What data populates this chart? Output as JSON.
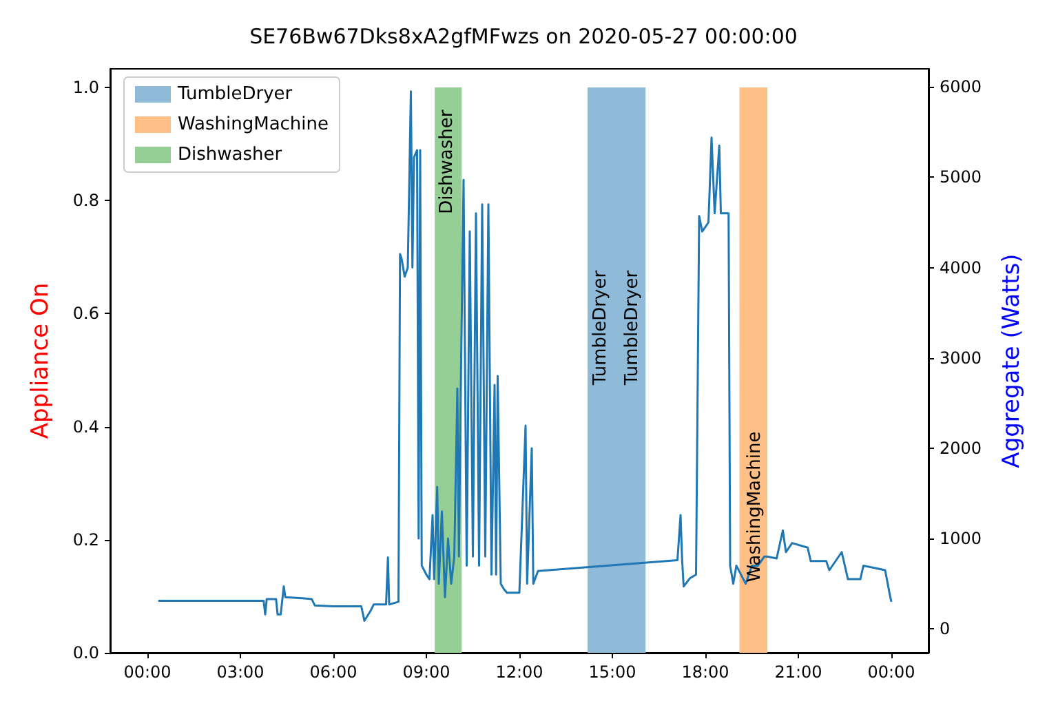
{
  "chart_data": {
    "type": "line",
    "title": "SE76Bw67Dks8xA2gfMFwzs on 2020-05-27 00:00:00",
    "ylabel": "Appliance On",
    "y2label": "Aggregate (Watts)",
    "xlim": [
      -1.2,
      25.2
    ],
    "xticks": [
      {
        "value": 0,
        "label": "00:00"
      },
      {
        "value": 3,
        "label": "03:00"
      },
      {
        "value": 6,
        "label": "06:00"
      },
      {
        "value": 9,
        "label": "09:00"
      },
      {
        "value": 12,
        "label": "12:00"
      },
      {
        "value": 15,
        "label": "15:00"
      },
      {
        "value": 18,
        "label": "18:00"
      },
      {
        "value": 21,
        "label": "21:00"
      },
      {
        "value": 24,
        "label": "00:00"
      }
    ],
    "ylim": [
      0,
      1.033
    ],
    "yticks": [
      {
        "value": 0,
        "label": "0.0"
      },
      0.2,
      0.4,
      0.6,
      0.8,
      {
        "value": 1,
        "label": "1.0"
      }
    ],
    "y2lim": [
      -265,
      6200
    ],
    "y2ticks": [
      0,
      1000,
      2000,
      3000,
      4000,
      5000,
      6000
    ],
    "legend": "top left",
    "grid": false,
    "marker": "none",
    "series": [
      {
        "name": "TumbleDryer",
        "type": "area",
        "color": "#8fbbd9",
        "x": [
          14.2,
          16.07
        ],
        "values": [
          1,
          1
        ]
      },
      {
        "name": "WashingMachine",
        "type": "area",
        "color": "#ffbf86",
        "x": [
          19.1,
          20.0
        ],
        "values": [
          1,
          1
        ]
      },
      {
        "name": "Dishwasher",
        "type": "area",
        "color": "#95cf95",
        "x": [
          9.27,
          10.14
        ],
        "values": [
          1,
          1
        ]
      },
      {
        "axis": "y2",
        "color": "#1f77b4",
        "x": [
          0.35,
          3.75,
          3.8,
          3.85,
          4.15,
          4.2,
          4.3,
          4.4,
          4.45,
          5.0,
          5.3,
          5.4,
          6.0,
          6.9,
          7.0,
          7.2,
          7.3,
          7.7,
          7.76,
          7.8,
          8.1,
          8.15,
          8.2,
          8.3,
          8.4,
          8.5,
          8.55,
          8.6,
          8.7,
          8.75,
          8.8,
          8.85,
          9.0,
          9.1,
          9.2,
          9.25,
          9.35,
          9.4,
          9.5,
          9.6,
          9.7,
          9.8,
          9.9,
          10.0,
          10.05,
          10.1,
          10.2,
          10.3,
          10.4,
          10.5,
          10.6,
          10.7,
          10.8,
          10.9,
          11.0,
          11.1,
          11.2,
          11.25,
          11.3,
          11.4,
          11.5,
          11.6,
          12.0,
          12.2,
          12.25,
          12.4,
          12.45,
          12.6,
          17.1,
          17.2,
          17.25,
          17.3,
          17.5,
          17.7,
          17.8,
          17.9,
          18.1,
          18.2,
          18.3,
          18.45,
          18.5,
          18.75,
          18.8,
          18.9,
          19.0,
          19.3,
          19.5,
          19.7,
          19.9,
          20.0,
          20.3,
          20.5,
          20.6,
          20.8,
          21.3,
          21.4,
          21.9,
          22.0,
          22.4,
          22.6,
          23.0,
          23.1,
          23.8,
          23.95,
          24.0
        ],
        "values": [
          310,
          310,
          160,
          330,
          330,
          160,
          160,
          470,
          350,
          340,
          330,
          260,
          250,
          250,
          90,
          200,
          270,
          270,
          790,
          270,
          300,
          4150,
          4100,
          3900,
          4000,
          5950,
          4000,
          5220,
          5300,
          1000,
          5300,
          700,
          600,
          550,
          1260,
          550,
          1570,
          500,
          1300,
          350,
          1000,
          500,
          800,
          2660,
          800,
          2400,
          4970,
          700,
          4400,
          800,
          4600,
          700,
          4700,
          800,
          4700,
          600,
          2700,
          600,
          2800,
          500,
          440,
          400,
          400,
          2250,
          500,
          2000,
          500,
          640,
          760,
          1260,
          770,
          470,
          560,
          600,
          4570,
          4400,
          4500,
          5440,
          4600,
          5350,
          4600,
          4600,
          700,
          500,
          700,
          500,
          700,
          700,
          800,
          800,
          780,
          1090,
          850,
          950,
          900,
          750,
          750,
          650,
          850,
          550,
          550,
          700,
          650,
          380,
          300
        ]
      }
    ],
    "annotations": [
      {
        "text": "Dishwasher",
        "x": 9.27,
        "y": 1
      },
      "TumbleDryer",
      "TumbleDryer",
      "WashingMachine"
    ]
  }
}
